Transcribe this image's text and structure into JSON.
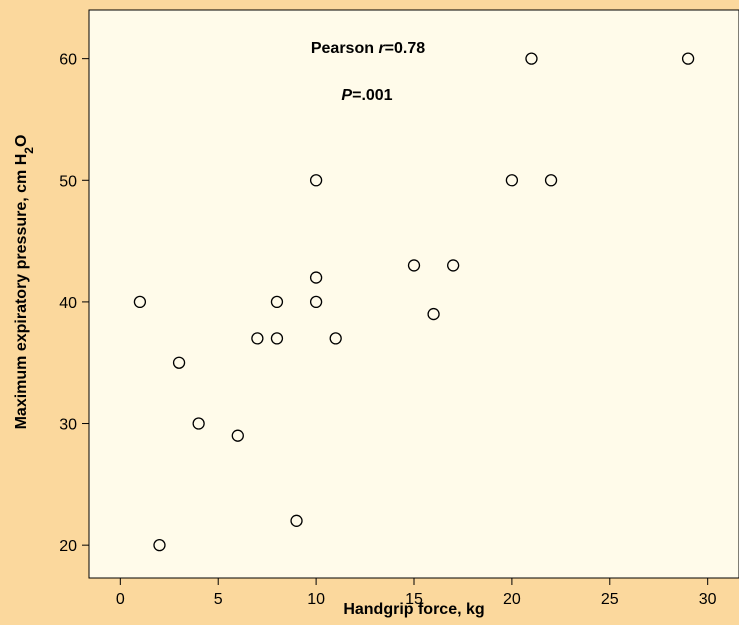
{
  "chart_data": {
    "type": "scatter",
    "xlabel": "Handgrip force, kg",
    "ylabel_main": "Maximum expiratory pressure, cm H",
    "ylabel_sub": "2",
    "ylabel_end": "O",
    "xlim": [
      -1.6,
      31.6
    ],
    "ylim": [
      17.3,
      64
    ],
    "xticks": [
      0,
      5,
      10,
      15,
      20,
      25,
      30
    ],
    "yticks": [
      20,
      30,
      40,
      50,
      60
    ],
    "grid": false,
    "annotations": {
      "pearson_prefix": "Pearson ",
      "pearson_r": "r",
      "pearson_eq": "=",
      "pearson_value": "0.78",
      "p_label": "P",
      "p_eq": "=",
      "p_value": ".001"
    },
    "points": [
      {
        "x": 1,
        "y": 40
      },
      {
        "x": 2,
        "y": 20
      },
      {
        "x": 3,
        "y": 35
      },
      {
        "x": 4,
        "y": 30
      },
      {
        "x": 6,
        "y": 29
      },
      {
        "x": 7,
        "y": 37
      },
      {
        "x": 8,
        "y": 40
      },
      {
        "x": 8,
        "y": 37
      },
      {
        "x": 9,
        "y": 22
      },
      {
        "x": 10,
        "y": 50
      },
      {
        "x": 10,
        "y": 42
      },
      {
        "x": 10,
        "y": 40
      },
      {
        "x": 11,
        "y": 37
      },
      {
        "x": 15,
        "y": 43
      },
      {
        "x": 16,
        "y": 39
      },
      {
        "x": 17,
        "y": 43
      },
      {
        "x": 20,
        "y": 50
      },
      {
        "x": 21,
        "y": 60
      },
      {
        "x": 22,
        "y": 50
      },
      {
        "x": 29,
        "y": 60
      }
    ],
    "colors": {
      "background": "#fbd89d",
      "plot_area": "#fffbea",
      "marker_stroke": "#000000"
    }
  }
}
